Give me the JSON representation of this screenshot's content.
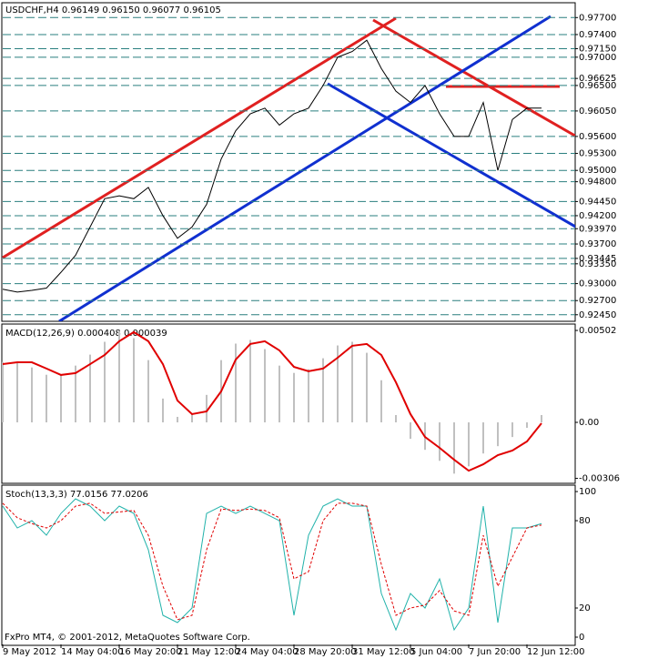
{
  "chart_data": [
    {
      "type": "line",
      "title": "USDCHF,H4  0.96149 0.96150 0.96077 0.96105",
      "series": [
        {
          "color": "#000000",
          "values": [
            0.929,
            0.9285,
            0.9288,
            0.9292,
            0.932,
            0.935,
            0.94,
            0.945,
            0.9455,
            0.945,
            0.947,
            0.942,
            0.938,
            0.94,
            0.944,
            0.952,
            0.957,
            0.96,
            0.961,
            0.958,
            0.96,
            0.961,
            0.965,
            0.97,
            0.971,
            0.973,
            0.968,
            0.964,
            0.962,
            0.965,
            0.96,
            0.956,
            0.956,
            0.962,
            0.95,
            0.959,
            0.961,
            0.961
          ]
        }
      ],
      "ylim": [
        0.9235,
        0.9793
      ],
      "yticks": [
        {
          "value": 0.977,
          "label": "0.97700"
        },
        {
          "value": 0.974,
          "label": "0.97400"
        },
        {
          "value": 0.9715,
          "label": "0.97150"
        },
        {
          "value": 0.97,
          "label": "0.97000"
        },
        {
          "value": 0.96625,
          "label": "0.96625"
        },
        {
          "value": 0.965,
          "label": "0.96500"
        },
        {
          "value": 0.9605,
          "label": "0.96050"
        },
        {
          "value": 0.956,
          "label": "0.95600"
        },
        {
          "value": 0.953,
          "label": "0.95300"
        },
        {
          "value": 0.95,
          "label": "0.95000"
        },
        {
          "value": 0.948,
          "label": "0.94800"
        },
        {
          "value": 0.9445,
          "label": "0.94450"
        },
        {
          "value": 0.942,
          "label": "0.94200"
        },
        {
          "value": 0.9397,
          "label": "0.93970"
        },
        {
          "value": 0.937,
          "label": "0.93700"
        },
        {
          "value": 0.93445,
          "label": "0.93445"
        },
        {
          "value": 0.9335,
          "label": "0.93350"
        },
        {
          "value": 0.93,
          "label": "0.93000"
        },
        {
          "value": 0.927,
          "label": "0.92700"
        },
        {
          "value": 0.9245,
          "label": "0.92450"
        }
      ],
      "grid": true
    },
    {
      "type": "combo",
      "title": "MACD(12,26,9) 0.000408 0.000039",
      "series": [
        {
          "style": "bar",
          "color": "#c0c0c0",
          "values": [
            0.0033,
            0.0033,
            0.003,
            0.0026,
            0.0026,
            0.0031,
            0.0037,
            0.0044,
            0.005,
            0.0046,
            0.0034,
            0.0013,
            0.0003,
            0.0005,
            0.0015,
            0.0034,
            0.0043,
            0.0045,
            0.004,
            0.0031,
            0.0027,
            0.0029,
            0.0035,
            0.0042,
            0.0044,
            0.0038,
            0.0023,
            0.0004,
            -0.0009,
            -0.0015,
            -0.0021,
            -0.0028,
            -0.0024,
            -0.0017,
            -0.0013,
            -0.0008,
            -0.0003,
            0.0004
          ]
        },
        {
          "style": "line",
          "color": "#e00000",
          "values": [
            0.00318,
            0.00328,
            0.00328,
            0.00294,
            0.00259,
            0.00269,
            0.00318,
            0.00368,
            0.00443,
            0.00493,
            0.00443,
            0.00318,
            0.00119,
            0.00045,
            0.0006,
            0.00169,
            0.00343,
            0.00428,
            0.00443,
            0.00393,
            0.00303,
            0.00279,
            0.00294,
            0.00353,
            0.00418,
            0.00428,
            0.00368,
            0.00219,
            0.00045,
            -0.0008,
            -0.00139,
            -0.00204,
            -0.00264,
            -0.00229,
            -0.00179,
            -0.00154,
            -0.00104,
            -5e-05
          ]
        }
      ],
      "ylim": [
        -0.00328,
        0.00532
      ],
      "yticks": [
        0.00502,
        {
          "value": 0,
          "label": "0.00"
        },
        -0.00306
      ]
    },
    {
      "type": "combo",
      "title": "Stoch(13,3,3) 77.0156 77.0206",
      "series": [
        {
          "style": "line",
          "color": "#20b2aa",
          "values": [
            90,
            75,
            80,
            70,
            85,
            95,
            90,
            80,
            90,
            85,
            60,
            15,
            10,
            20,
            85,
            90,
            85,
            90,
            85,
            80,
            15,
            70,
            90,
            95,
            90,
            90,
            30,
            5,
            30,
            20,
            40,
            5,
            20,
            90,
            10,
            75,
            75,
            78
          ]
        },
        {
          "style": "dashed",
          "color": "#e00000",
          "values": [
            92,
            82,
            78,
            75,
            80,
            90,
            92,
            85,
            86,
            87,
            70,
            35,
            12,
            15,
            60,
            88,
            87,
            88,
            87,
            82,
            40,
            45,
            80,
            92,
            92,
            90,
            50,
            15,
            20,
            22,
            32,
            18,
            15,
            70,
            35,
            55,
            75,
            77
          ]
        }
      ],
      "ylim": [
        -5,
        104.4
      ],
      "yticks": [
        100,
        80,
        20,
        0
      ],
      "categories": [
        "9 May 2012",
        null,
        null,
        null,
        "14 May 04:00",
        null,
        null,
        null,
        "16 May 20:00",
        null,
        null,
        null,
        "21 May 12:00",
        null,
        null,
        null,
        "24 May 04:00",
        null,
        null,
        null,
        "28 May 20:00",
        null,
        null,
        null,
        "31 May 12:00",
        null,
        null,
        null,
        "5 Jun 04:00",
        null,
        null,
        null,
        "7 Jun 20:00",
        null,
        null,
        null,
        "12 Jun 12:00",
        null
      ],
      "footer": "FxPro MT4, © 2001-2012, MetaQuotes Software Corp."
    }
  ]
}
